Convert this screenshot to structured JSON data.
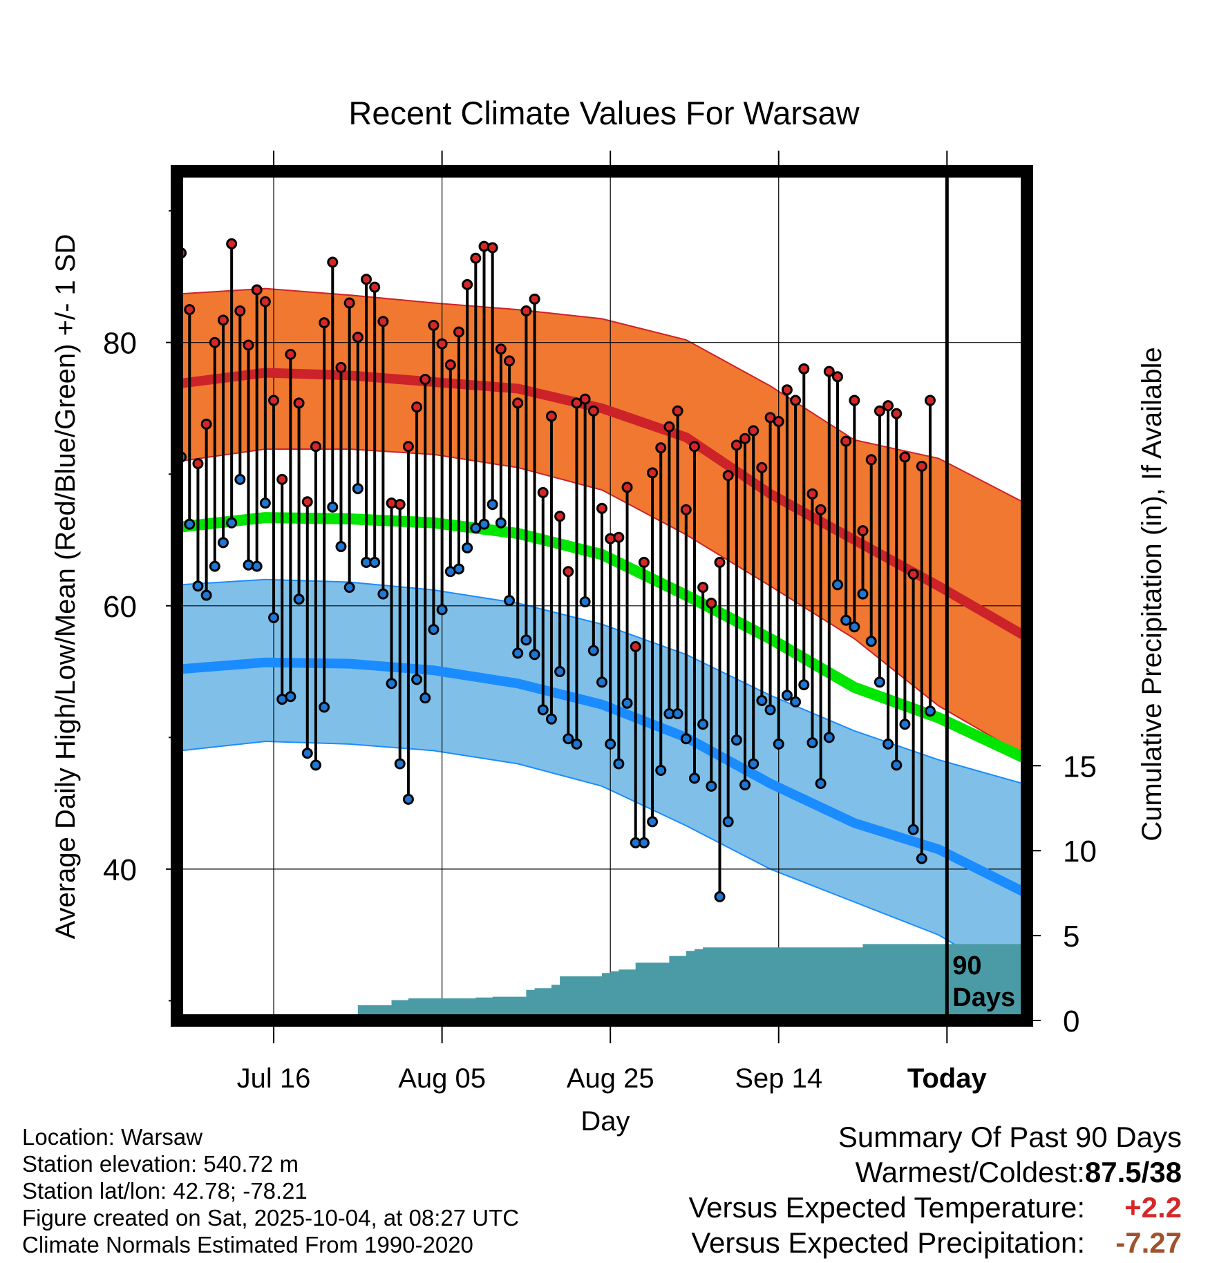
{
  "chart_data": {
    "type": "climate-range",
    "title": "Recent Climate Values For Warsaw",
    "xlabel": "Day",
    "ylabel": "Average Daily High/Low/Mean (Red/Blue/Green) +/- 1 SD",
    "y2label": "Cumulative Precipitation (in), If Available",
    "ylim": [
      28.5,
      93
    ],
    "y2lim": [
      0,
      50
    ],
    "y_ticks": [
      40,
      60,
      80
    ],
    "y_minor_ticks": [
      30,
      50,
      70,
      90
    ],
    "y2_ticks": [
      0,
      5,
      10,
      15
    ],
    "x_ticks": [
      {
        "day": 11,
        "label": "Jul 16"
      },
      {
        "day": 31,
        "label": "Aug 05"
      },
      {
        "day": 51,
        "label": "Aug 25"
      },
      {
        "day": 71,
        "label": "Sep 14"
      },
      {
        "day": 91,
        "label": "Today"
      }
    ],
    "xlim": [
      -0.5,
      100.5
    ],
    "today_day": 91,
    "today_annotation": [
      "90",
      "Days"
    ],
    "daily_high": [
      86.8,
      82.5,
      70.8,
      73.8,
      80.0,
      81.7,
      87.5,
      82.4,
      79.8,
      84.0,
      83.1,
      75.6,
      69.6,
      79.1,
      75.4,
      67.9,
      72.1,
      81.5,
      86.1,
      78.1,
      83.0,
      80.4,
      84.8,
      84.2,
      81.6,
      67.8,
      67.7,
      72.1,
      75.1,
      77.2,
      81.3,
      79.9,
      78.3,
      80.8,
      84.4,
      86.4,
      87.3,
      87.2,
      79.5,
      78.6,
      75.4,
      82.4,
      83.3,
      68.6,
      74.4,
      66.8,
      62.6,
      75.4,
      75.7,
      74.8,
      67.4,
      65.1,
      65.2,
      69.0,
      56.9,
      63.3,
      70.1,
      72.0,
      73.6,
      74.8,
      67.3,
      72.1,
      61.4,
      60.2,
      63.3,
      69.9,
      72.2,
      72.7,
      73.3,
      70.5,
      74.3,
      74.0,
      76.4,
      75.6,
      78.0,
      68.5,
      67.3,
      77.8,
      77.4,
      72.5,
      75.6,
      65.7,
      71.1,
      74.8,
      75.2,
      74.6,
      71.3,
      62.4,
      70.6,
      75.6
    ],
    "daily_low": [
      71.3,
      66.2,
      61.5,
      60.8,
      63.0,
      64.8,
      66.3,
      69.6,
      63.1,
      63.0,
      67.8,
      59.1,
      52.9,
      53.1,
      60.5,
      48.8,
      47.9,
      52.3,
      67.5,
      64.5,
      61.4,
      68.9,
      63.3,
      63.3,
      60.9,
      54.1,
      48.0,
      45.3,
      54.4,
      53.0,
      58.2,
      59.7,
      62.6,
      62.8,
      64.4,
      65.9,
      66.2,
      67.7,
      66.3,
      60.4,
      56.4,
      57.4,
      56.3,
      52.1,
      51.4,
      55.0,
      49.9,
      49.5,
      60.3,
      56.6,
      54.2,
      49.5,
      48.0,
      52.6,
      42.0,
      42.0,
      43.6,
      47.5,
      51.8,
      51.8,
      49.9,
      46.9,
      51.0,
      46.3,
      37.9,
      43.6,
      49.8,
      46.4,
      48.0,
      52.8,
      52.1,
      49.5,
      53.2,
      52.7,
      54.0,
      49.6,
      46.5,
      50.0,
      61.6,
      58.9,
      58.4,
      60.9,
      57.3,
      54.2,
      49.5,
      47.9,
      51.0,
      43.0,
      40.8,
      52.0
    ],
    "normal_high_mean": {
      "days": [
        0,
        10,
        20,
        30,
        40,
        50,
        60,
        70,
        80,
        90,
        100
      ],
      "values": [
        76.9,
        77.7,
        77.5,
        77.0,
        76.5,
        75.0,
        72.8,
        68.5,
        65.0,
        61.5,
        57.8
      ]
    },
    "normal_high_upper": {
      "days": [
        0,
        10,
        20,
        30,
        40,
        50,
        60,
        70,
        80,
        90,
        100
      ],
      "values": [
        83.7,
        84.1,
        83.6,
        83.0,
        82.5,
        81.8,
        80.2,
        76.7,
        72.6,
        71.2,
        67.9
      ]
    },
    "normal_high_lower": {
      "days": [
        0,
        10,
        20,
        30,
        40,
        50,
        60,
        70,
        80,
        90,
        100
      ],
      "values": [
        71.0,
        71.9,
        71.9,
        71.5,
        70.5,
        68.8,
        65.4,
        61.5,
        57.5,
        52.4,
        48.7
      ]
    },
    "normal_mean": {
      "days": [
        0,
        10,
        20,
        30,
        40,
        50,
        60,
        70,
        80,
        90,
        100
      ],
      "values": [
        66.0,
        66.7,
        66.6,
        66.3,
        65.5,
        63.9,
        60.8,
        57.5,
        53.8,
        51.5,
        48.5
      ]
    },
    "normal_low_mean": {
      "days": [
        0,
        10,
        20,
        30,
        40,
        50,
        60,
        70,
        80,
        90,
        100
      ],
      "values": [
        55.2,
        55.7,
        55.6,
        55.1,
        54.1,
        52.5,
        50.0,
        46.5,
        43.5,
        41.5,
        38.3
      ]
    },
    "normal_low_upper": {
      "days": [
        0,
        10,
        20,
        30,
        40,
        50,
        60,
        70,
        80,
        90,
        100
      ],
      "values": [
        61.6,
        62.0,
        61.8,
        61.2,
        60.2,
        58.6,
        56.3,
        53.2,
        50.5,
        48.3,
        46.5
      ]
    },
    "normal_low_lower": {
      "days": [
        0,
        10,
        20,
        30,
        40,
        50,
        60,
        70,
        80,
        90,
        100
      ],
      "values": [
        49.0,
        49.7,
        49.5,
        49.0,
        48.0,
        46.3,
        43.3,
        40.0,
        37.5,
        35.0,
        31.2
      ]
    },
    "cumulative_precip": {
      "days": [
        0,
        10,
        11,
        13,
        15,
        17,
        20,
        21,
        24,
        25,
        27,
        30,
        31,
        35,
        37,
        38,
        41,
        42,
        44,
        45,
        46,
        47,
        49,
        50,
        51,
        52,
        54,
        55,
        57,
        58,
        60,
        61,
        62,
        64,
        71,
        80,
        81,
        82,
        100
      ],
      "values": [
        0,
        0,
        0.1,
        0.2,
        0.25,
        0.3,
        0.3,
        0.9,
        0.9,
        1.2,
        1.3,
        1.3,
        1.3,
        1.35,
        1.4,
        1.4,
        1.8,
        1.9,
        2.1,
        2.6,
        2.6,
        2.6,
        2.6,
        2.8,
        2.9,
        3.0,
        3.4,
        3.4,
        3.4,
        3.8,
        4.1,
        4.2,
        4.3,
        4.3,
        4.3,
        4.3,
        4.5,
        4.5,
        4.5
      ]
    }
  },
  "footer": {
    "location": "Location: Warsaw",
    "elevation": "Station elevation: 540.72 m",
    "latlon": "Station lat/lon: 42.78; -78.21",
    "created": "Figure created on Sat, 2025-10-04, at 08:27 UTC",
    "normals": "Climate Normals Estimated From 1990-2020"
  },
  "summary": {
    "title": "Summary Of Past 90 Days",
    "warmest_coldest_label": "Warmest/Coldest:",
    "warmest_coldest_value": "87.5/38",
    "temp_label": "Versus Expected Temperature:",
    "temp_value": "+2.2",
    "precip_label": "Versus Expected Precipitation:",
    "precip_value": "-7.27"
  },
  "colors": {
    "high_band": "#f07830",
    "high_line": "#cc2229",
    "mean_line": "#00e600",
    "low_band": "#80c0e8",
    "low_line": "#1a8cff",
    "precip_fill": "#4a9ba5",
    "high_dot": "#d62728",
    "low_dot": "#1f77d4"
  }
}
